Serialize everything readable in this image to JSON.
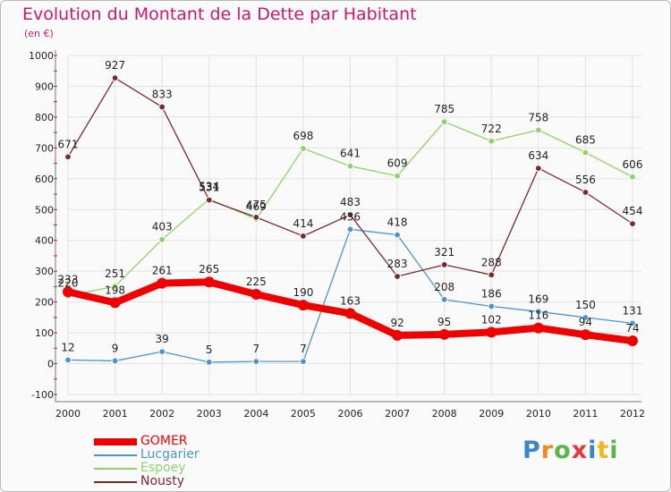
{
  "chart_data": {
    "type": "line",
    "title": "Evolution du Montant de la Dette par Habitant",
    "subtitle": "(en €)",
    "x": [
      "2000",
      "2001",
      "2002",
      "2003",
      "2004",
      "2005",
      "2006",
      "2007",
      "2008",
      "2009",
      "2010",
      "2011",
      "2012"
    ],
    "ylim": [
      -100,
      1000
    ],
    "yticks": [
      -100,
      0,
      100,
      200,
      300,
      400,
      500,
      600,
      700,
      800,
      900,
      1000
    ],
    "grid": true,
    "legend": "bottom-left",
    "series": [
      {
        "name": "Lucgarier",
        "color": "#4a96cc",
        "values": [
          12,
          9,
          39,
          5,
          7,
          7,
          436,
          418,
          208,
          186,
          169,
          150,
          131
        ]
      },
      {
        "name": "Espoey",
        "color": "#8ed36a",
        "values": [
          220,
          251,
          403,
          534,
          469,
          698,
          641,
          609,
          785,
          722,
          758,
          685,
          606
        ]
      },
      {
        "name": "Nousty",
        "color": "#7a2a2a",
        "values": [
          671,
          927,
          833,
          531,
          475,
          414,
          483,
          283,
          321,
          288,
          634,
          556,
          454
        ]
      },
      {
        "name": "GOMER",
        "color": "#ee0000",
        "values": [
          233,
          198,
          261,
          265,
          225,
          190,
          163,
          92,
          95,
          102,
          116,
          94,
          74
        ]
      }
    ],
    "legend_order": [
      "GOMER",
      "Lucgarier",
      "Espoey",
      "Nousty"
    ]
  },
  "logo": {
    "letters": [
      "P",
      "r",
      "o",
      "x",
      "i",
      "t",
      "i"
    ],
    "colors": [
      "#3a86c8",
      "#f08a1c",
      "#5bb44a",
      "#e03a3a",
      "#3a86c8",
      "#f0b81c",
      "#5bb44a"
    ]
  }
}
